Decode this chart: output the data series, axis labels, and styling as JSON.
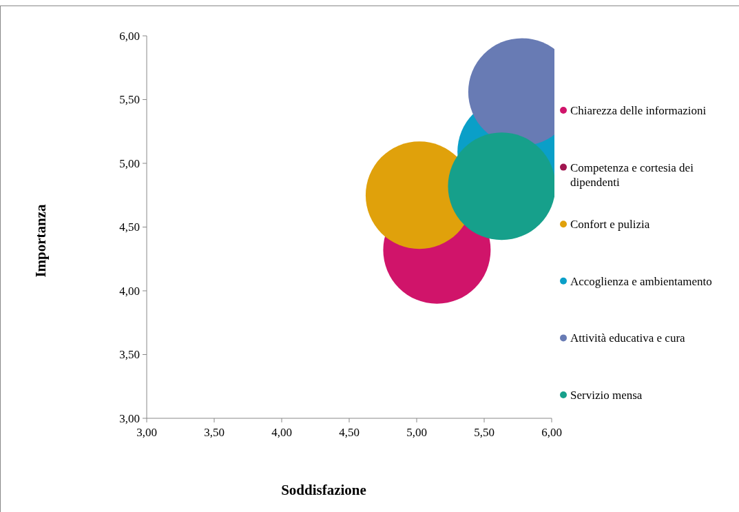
{
  "chart_data": {
    "type": "bubble",
    "xlabel": "Soddisfazione",
    "ylabel": "Importanza",
    "xlim": [
      3,
      6
    ],
    "ylim": [
      3,
      6
    ],
    "xticks": [
      {
        "value": 3,
        "label": "3,00"
      },
      {
        "value": 3.5,
        "label": "3,50"
      },
      {
        "value": 4,
        "label": "4,00"
      },
      {
        "value": 4.5,
        "label": "4,50"
      },
      {
        "value": 5,
        "label": "5,00"
      },
      {
        "value": 5.5,
        "label": "5,50"
      },
      {
        "value": 6,
        "label": "6,00"
      }
    ],
    "yticks": [
      {
        "value": 3,
        "label": "3,00"
      },
      {
        "value": 3.5,
        "label": "3,50"
      },
      {
        "value": 4,
        "label": "4,00"
      },
      {
        "value": 4.5,
        "label": "4,50"
      },
      {
        "value": 5,
        "label": "5,00"
      },
      {
        "value": 5.5,
        "label": "5,50"
      },
      {
        "value": 6,
        "label": "6,00"
      }
    ],
    "grid": false,
    "legend": "right",
    "series": [
      {
        "name": "Chiarezza delle informazioni",
        "color": "#d0146a",
        "x": [
          5.15
        ],
        "values": [
          4.32
        ],
        "sizes": [
          1
        ]
      },
      {
        "name": "Competenza e cortesia dei dipendenti",
        "color": "#a0154f",
        "x": [
          null
        ],
        "values": [
          null
        ],
        "sizes": [
          null
        ]
      },
      {
        "name": "Confort e pulizia",
        "color": "#e0a10b",
        "x": [
          5.02
        ],
        "values": [
          4.75
        ],
        "sizes": [
          1
        ]
      },
      {
        "name": "Accoglienza e ambientamento",
        "color": "#0a9fc8",
        "x": [
          5.7
        ],
        "values": [
          5.09
        ],
        "sizes": [
          1
        ]
      },
      {
        "name": "Attività educativa e cura",
        "color": "#687bb4",
        "x": [
          5.78
        ],
        "values": [
          5.56
        ],
        "sizes": [
          1
        ]
      },
      {
        "name": "Servizio mensa",
        "color": "#16a08b",
        "x": [
          5.63
        ],
        "values": [
          4.82
        ],
        "sizes": [
          1
        ]
      }
    ]
  }
}
